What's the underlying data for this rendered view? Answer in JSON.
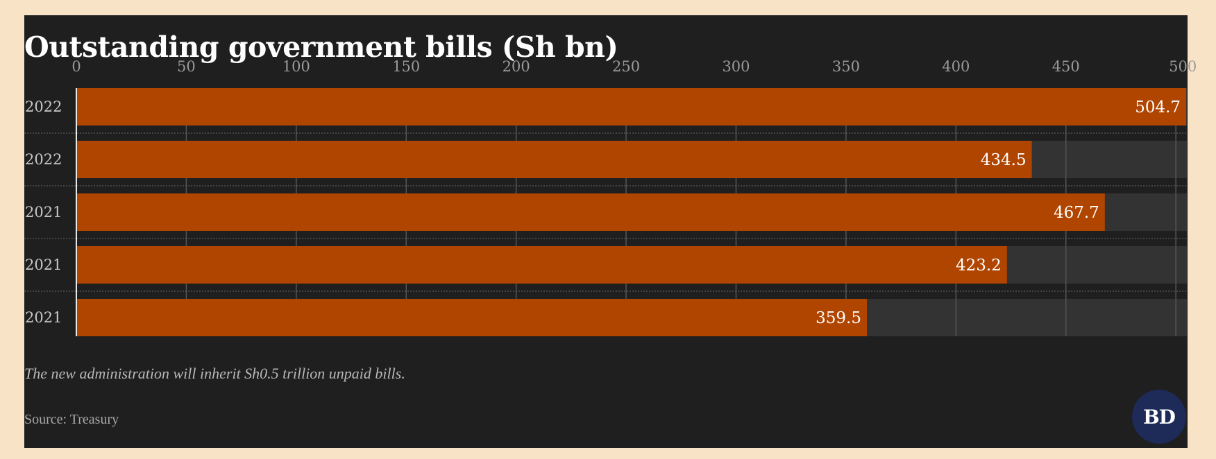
{
  "title": "Outstanding government bills (Sh bn)",
  "subtitle": "The new administration will inherit Sh0.5 trillion unpaid bills.",
  "source": "Source: Treasury",
  "logo_text": "BD",
  "colors": {
    "page_background": "#f9e3c6",
    "card_background": "#1f1f1f",
    "track": "#333333",
    "bar": "#b04500",
    "text": "#ffffff",
    "muted_text": "#a8a8a8"
  },
  "chart_data": {
    "type": "bar",
    "orientation": "horizontal",
    "categories": [
      "2022",
      "2022",
      "2021",
      "2021",
      "2021"
    ],
    "values": [
      504.7,
      434.5,
      467.7,
      423.2,
      359.5
    ],
    "value_labels": [
      "504.7",
      "434.5",
      "467.7",
      "423.2",
      "359.5"
    ],
    "x_ticks": [
      0,
      50,
      100,
      150,
      200,
      250,
      300,
      350,
      400,
      450,
      500
    ],
    "xlim": [
      0,
      505
    ],
    "grid": true,
    "xlabel": "",
    "ylabel": ""
  }
}
